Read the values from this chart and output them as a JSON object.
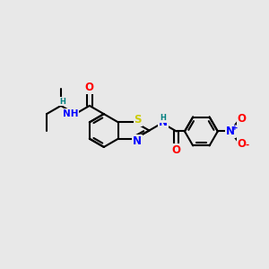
{
  "bg_color": "#e8e8e8",
  "bond_color": "#000000",
  "bond_width": 1.5,
  "atom_colors": {
    "O": "#ff0000",
    "N": "#0000ff",
    "S": "#cccc00",
    "H": "#008080",
    "C": "#000000",
    "plus": "#0000ff",
    "minus": "#ff0000"
  },
  "font_size": 7.5,
  "figsize": [
    3.0,
    3.0
  ],
  "dpi": 100
}
